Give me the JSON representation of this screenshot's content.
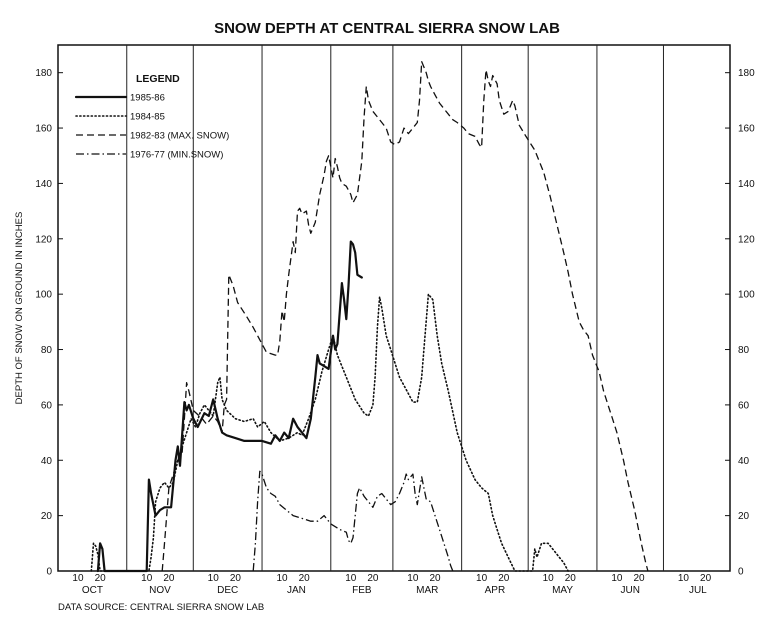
{
  "chart_data": {
    "type": "line",
    "title": "SNOW DEPTH AT CENTRAL SIERRA SNOW LAB",
    "ylabel": "DEPTH OF SNOW ON GROUND IN INCHES",
    "source": "DATA SOURCE:  CENTRAL SIERRA SNOW LAB",
    "legend_title": "LEGEND",
    "legend_position": "top-left",
    "grid": "vertical month boundaries",
    "ylim": [
      0,
      190
    ],
    "yticks": [
      0,
      20,
      40,
      60,
      80,
      100,
      120,
      140,
      160,
      180
    ],
    "x_range_days": [
      0,
      303
    ],
    "months": [
      {
        "label": "OCT",
        "start": 0
      },
      {
        "label": "NOV",
        "start": 31
      },
      {
        "label": "DEC",
        "start": 61
      },
      {
        "label": "JAN",
        "start": 92
      },
      {
        "label": "FEB",
        "start": 123
      },
      {
        "label": "MAR",
        "start": 151
      },
      {
        "label": "APR",
        "start": 182
      },
      {
        "label": "MAY",
        "start": 212
      },
      {
        "label": "JUN",
        "start": 243
      },
      {
        "label": "JUL",
        "start": 273
      },
      {
        "label": "",
        "start": 304
      }
    ],
    "day_ticks": [
      "10",
      "20"
    ],
    "series": [
      {
        "name": "1985-86",
        "style": "solid",
        "points": [
          [
            18,
            0
          ],
          [
            19,
            10
          ],
          [
            20,
            8
          ],
          [
            21,
            0
          ],
          [
            40,
            0
          ],
          [
            41,
            33
          ],
          [
            42,
            28
          ],
          [
            44,
            20
          ],
          [
            46,
            22
          ],
          [
            48,
            23
          ],
          [
            51,
            23
          ],
          [
            53,
            40
          ],
          [
            54,
            45
          ],
          [
            55,
            38
          ],
          [
            57,
            61
          ],
          [
            58,
            58
          ],
          [
            59,
            60
          ],
          [
            61,
            55
          ],
          [
            63,
            52
          ],
          [
            66,
            57
          ],
          [
            68,
            56
          ],
          [
            70,
            62
          ],
          [
            72,
            55
          ],
          [
            74,
            50
          ],
          [
            76,
            49
          ],
          [
            80,
            48
          ],
          [
            84,
            47
          ],
          [
            88,
            47
          ],
          [
            92,
            47
          ],
          [
            96,
            46
          ],
          [
            98,
            49
          ],
          [
            100,
            47
          ],
          [
            102,
            50
          ],
          [
            104,
            48
          ],
          [
            106,
            55
          ],
          [
            108,
            52
          ],
          [
            110,
            50
          ],
          [
            112,
            48
          ],
          [
            114,
            55
          ],
          [
            116,
            70
          ],
          [
            117,
            78
          ],
          [
            118,
            75
          ],
          [
            120,
            74
          ],
          [
            122,
            73
          ],
          [
            124,
            85
          ],
          [
            125,
            80
          ],
          [
            126,
            82
          ],
          [
            128,
            104
          ],
          [
            129,
            98
          ],
          [
            130,
            91
          ],
          [
            131,
            103
          ],
          [
            132,
            119
          ],
          [
            133,
            118
          ],
          [
            134,
            115
          ],
          [
            135,
            107
          ],
          [
            137,
            106
          ]
        ]
      },
      {
        "name": "1984-85",
        "style": "dotted",
        "points": [
          [
            15,
            0
          ],
          [
            16,
            10
          ],
          [
            17,
            9
          ],
          [
            18,
            6
          ],
          [
            19,
            0
          ],
          [
            41,
            0
          ],
          [
            42,
            5
          ],
          [
            43,
            12
          ],
          [
            44,
            25
          ],
          [
            46,
            30
          ],
          [
            48,
            32
          ],
          [
            50,
            30
          ],
          [
            52,
            32
          ],
          [
            54,
            40
          ],
          [
            56,
            45
          ],
          [
            58,
            50
          ],
          [
            60,
            55
          ],
          [
            62,
            52
          ],
          [
            64,
            57
          ],
          [
            66,
            60
          ],
          [
            68,
            58
          ],
          [
            70,
            56
          ],
          [
            72,
            68
          ],
          [
            73,
            70
          ],
          [
            74,
            62
          ],
          [
            76,
            58
          ],
          [
            80,
            55
          ],
          [
            84,
            54
          ],
          [
            88,
            55
          ],
          [
            90,
            52
          ],
          [
            93,
            54
          ],
          [
            96,
            50
          ],
          [
            100,
            47
          ],
          [
            104,
            48
          ],
          [
            108,
            50
          ],
          [
            110,
            49
          ],
          [
            113,
            55
          ],
          [
            116,
            62
          ],
          [
            119,
            72
          ],
          [
            122,
            80
          ],
          [
            124,
            85
          ],
          [
            126,
            78
          ],
          [
            130,
            70
          ],
          [
            134,
            62
          ],
          [
            138,
            57
          ],
          [
            140,
            56
          ],
          [
            142,
            60
          ],
          [
            143,
            70
          ],
          [
            144,
            88
          ],
          [
            145,
            99
          ],
          [
            146,
            95
          ],
          [
            148,
            85
          ],
          [
            150,
            80
          ],
          [
            152,
            75
          ],
          [
            154,
            70
          ],
          [
            156,
            67
          ],
          [
            160,
            61
          ],
          [
            162,
            61
          ],
          [
            164,
            70
          ],
          [
            165,
            80
          ],
          [
            167,
            100
          ],
          [
            169,
            98
          ],
          [
            171,
            85
          ],
          [
            173,
            75
          ],
          [
            176,
            65
          ],
          [
            180,
            50
          ],
          [
            184,
            40
          ],
          [
            188,
            33
          ],
          [
            191,
            30
          ],
          [
            194,
            28
          ],
          [
            196,
            20
          ],
          [
            198,
            15
          ],
          [
            200,
            10
          ],
          [
            203,
            5
          ],
          [
            206,
            0
          ],
          [
            214,
            0
          ],
          [
            215,
            8
          ],
          [
            216,
            5
          ],
          [
            218,
            10
          ],
          [
            221,
            10
          ],
          [
            224,
            7
          ],
          [
            226,
            5
          ],
          [
            228,
            3
          ],
          [
            230,
            0
          ]
        ]
      },
      {
        "name": "1982-83 (MAX. SNOW)",
        "style": "dashed",
        "points": [
          [
            47,
            0
          ],
          [
            48,
            10
          ],
          [
            50,
            30
          ],
          [
            52,
            35
          ],
          [
            54,
            40
          ],
          [
            56,
            43
          ],
          [
            57,
            55
          ],
          [
            58,
            68
          ],
          [
            59,
            65
          ],
          [
            61,
            58
          ],
          [
            65,
            55
          ],
          [
            67,
            53
          ],
          [
            70,
            56
          ],
          [
            72,
            54
          ],
          [
            74,
            50
          ],
          [
            75,
            60
          ],
          [
            76,
            62
          ],
          [
            77,
            107
          ],
          [
            79,
            103
          ],
          [
            81,
            97
          ],
          [
            85,
            92
          ],
          [
            88,
            88
          ],
          [
            92,
            82
          ],
          [
            94,
            79
          ],
          [
            98,
            78
          ],
          [
            99,
            78
          ],
          [
            100,
            83
          ],
          [
            101,
            94
          ],
          [
            102,
            90
          ],
          [
            103,
            100
          ],
          [
            104,
            107
          ],
          [
            106,
            119
          ],
          [
            107,
            115
          ],
          [
            108,
            130
          ],
          [
            109,
            131
          ],
          [
            110,
            129
          ],
          [
            112,
            130
          ],
          [
            113,
            125
          ],
          [
            114,
            122
          ],
          [
            116,
            126
          ],
          [
            118,
            136
          ],
          [
            120,
            143
          ],
          [
            121,
            148
          ],
          [
            122,
            150
          ],
          [
            124,
            142
          ],
          [
            125,
            149
          ],
          [
            126,
            146
          ],
          [
            127,
            142
          ],
          [
            128,
            140
          ],
          [
            130,
            139
          ],
          [
            132,
            136
          ],
          [
            133,
            133
          ],
          [
            135,
            136
          ],
          [
            137,
            148
          ],
          [
            138,
            164
          ],
          [
            139,
            175
          ],
          [
            140,
            170
          ],
          [
            142,
            166
          ],
          [
            144,
            164
          ],
          [
            146,
            162
          ],
          [
            148,
            160
          ],
          [
            150,
            155
          ],
          [
            152,
            154
          ],
          [
            154,
            155
          ],
          [
            156,
            160
          ],
          [
            158,
            158
          ],
          [
            160,
            160
          ],
          [
            162,
            162
          ],
          [
            163,
            170
          ],
          [
            164,
            184
          ],
          [
            166,
            180
          ],
          [
            167,
            177
          ],
          [
            168,
            175
          ],
          [
            170,
            172
          ],
          [
            172,
            169
          ],
          [
            175,
            166
          ],
          [
            178,
            163
          ],
          [
            180,
            162
          ],
          [
            183,
            160
          ],
          [
            185,
            158
          ],
          [
            188,
            157
          ],
          [
            190,
            154
          ],
          [
            191,
            153
          ],
          [
            192,
            170
          ],
          [
            193,
            181
          ],
          [
            194,
            177
          ],
          [
            195,
            175
          ],
          [
            196,
            179
          ],
          [
            198,
            176
          ],
          [
            199,
            170
          ],
          [
            201,
            165
          ],
          [
            203,
            166
          ],
          [
            205,
            170
          ],
          [
            206,
            168
          ],
          [
            208,
            161
          ],
          [
            211,
            157
          ],
          [
            215,
            152
          ],
          [
            219,
            144
          ],
          [
            222,
            135
          ],
          [
            225,
            125
          ],
          [
            228,
            115
          ],
          [
            230,
            108
          ],
          [
            232,
            100
          ],
          [
            235,
            90
          ],
          [
            237,
            87
          ],
          [
            239,
            85
          ],
          [
            241,
            78
          ],
          [
            244,
            72
          ],
          [
            246,
            65
          ],
          [
            248,
            60
          ],
          [
            250,
            55
          ],
          [
            252,
            50
          ],
          [
            255,
            40
          ],
          [
            257,
            32
          ],
          [
            260,
            22
          ],
          [
            263,
            10
          ],
          [
            265,
            3
          ],
          [
            266,
            0
          ]
        ]
      },
      {
        "name": "1976-77 (MIN.SNOW)",
        "style": "dashdot",
        "points": [
          [
            88,
            0
          ],
          [
            89,
            10
          ],
          [
            90,
            25
          ],
          [
            91,
            36
          ],
          [
            92,
            35
          ],
          [
            94,
            30
          ],
          [
            96,
            28
          ],
          [
            98,
            27
          ],
          [
            100,
            24
          ],
          [
            103,
            22
          ],
          [
            106,
            20
          ],
          [
            110,
            19
          ],
          [
            114,
            18
          ],
          [
            117,
            18
          ],
          [
            120,
            20
          ],
          [
            123,
            17
          ],
          [
            127,
            15
          ],
          [
            130,
            14
          ],
          [
            131,
            11
          ],
          [
            132,
            10
          ],
          [
            133,
            12
          ],
          [
            134,
            20
          ],
          [
            135,
            28
          ],
          [
            136,
            30
          ],
          [
            138,
            27
          ],
          [
            140,
            25
          ],
          [
            142,
            23
          ],
          [
            144,
            27
          ],
          [
            146,
            28
          ],
          [
            148,
            26
          ],
          [
            150,
            24
          ],
          [
            152,
            25
          ],
          [
            154,
            28
          ],
          [
            156,
            32
          ],
          [
            157,
            35
          ],
          [
            158,
            33
          ],
          [
            160,
            35
          ],
          [
            161,
            28
          ],
          [
            162,
            24
          ],
          [
            164,
            34
          ],
          [
            165,
            30
          ],
          [
            166,
            26
          ],
          [
            168,
            25
          ],
          [
            170,
            20
          ],
          [
            172,
            15
          ],
          [
            174,
            10
          ],
          [
            176,
            5
          ],
          [
            177,
            2
          ],
          [
            178,
            0
          ]
        ]
      }
    ]
  }
}
